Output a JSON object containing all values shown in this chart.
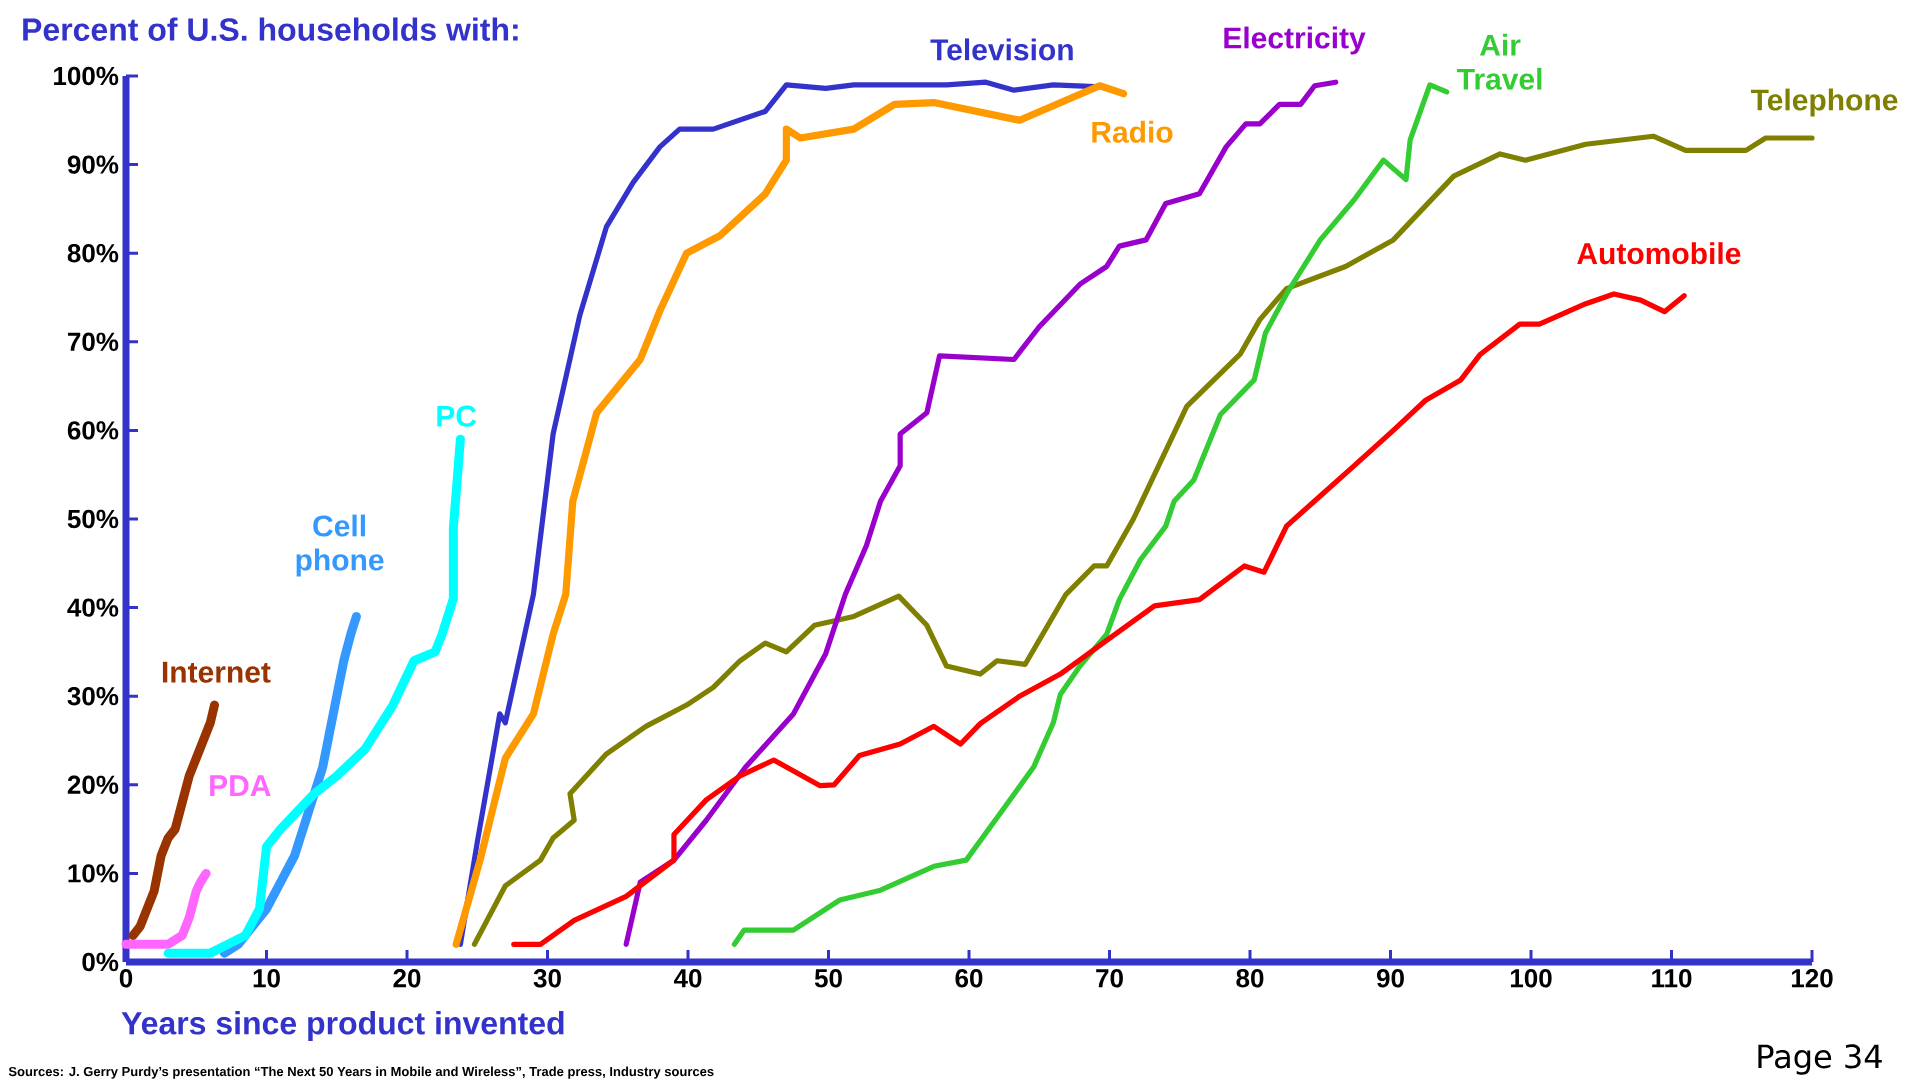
{
  "chart_data": {
    "type": "line",
    "title": "Percent of U.S. households with:",
    "xlabel": "Years since product invented",
    "xlim": [
      0,
      120
    ],
    "xticks": [
      0,
      10,
      20,
      30,
      40,
      50,
      60,
      70,
      80,
      90,
      100,
      110,
      120
    ],
    "ylim": [
      0,
      100
    ],
    "yticks": [
      {
        "value": 0,
        "label": "0%"
      },
      {
        "value": 10,
        "label": "10%"
      },
      {
        "value": 20,
        "label": "20%"
      },
      {
        "value": 30,
        "label": "30%"
      },
      {
        "value": 40,
        "label": "40%"
      },
      {
        "value": 50,
        "label": "50%"
      },
      {
        "value": 60,
        "label": "60%"
      },
      {
        "value": 70,
        "label": "70%"
      },
      {
        "value": 80,
        "label": "80%"
      },
      {
        "value": 90,
        "label": "90%"
      },
      {
        "value": 100,
        "label": "100%"
      }
    ],
    "grid": false,
    "legend": false,
    "line_style": "solid",
    "marker": "none",
    "annotations": [
      "Sources:  J. Gerry Purdy’s presentation “The Next 50 Years in Mobile and Wireless”, Trade press, Industry sources",
      "Page 34"
    ],
    "series": [
      {
        "name": "Internet",
        "color": "#993300",
        "x": [
          0.5,
          1,
          1.5,
          2,
          2.5,
          3,
          3.5,
          4,
          4.5,
          5,
          5.5,
          6,
          6.3
        ],
        "values": [
          3,
          4,
          6,
          8,
          12,
          14,
          15,
          18,
          21,
          23,
          25,
          27,
          29
        ]
      },
      {
        "name": "PDA",
        "color": "#ff66ff",
        "x": [
          0,
          1,
          2,
          3,
          4,
          4.5,
          5,
          5.3,
          5.7
        ],
        "values": [
          2,
          2,
          2,
          2,
          3,
          5,
          8,
          9,
          10
        ]
      },
      {
        "name": "Cell phone",
        "color": "#3399ff",
        "x": [
          7,
          8,
          9,
          10,
          11,
          12,
          13,
          14,
          14.5,
          15,
          15.5,
          16,
          16.4
        ],
        "values": [
          1,
          2,
          4,
          6,
          9,
          12,
          17,
          22,
          26,
          30,
          34,
          37,
          39
        ]
      },
      {
        "name": "PC",
        "color": "#00ffff",
        "x": [
          3,
          6,
          8.5,
          9.5,
          10,
          11,
          13.4,
          15,
          17,
          19,
          20.5,
          22,
          22.5,
          23.3,
          23.3,
          23.8
        ],
        "values": [
          1,
          1,
          3,
          6,
          13,
          15,
          19,
          21,
          24,
          29,
          34,
          35,
          37,
          41,
          49,
          59
        ]
      },
      {
        "name": "Television",
        "color": "#3333cc",
        "x": [
          23.8,
          25,
          26.6,
          27,
          29,
          30.4,
          32.3,
          34.2,
          36.1,
          38,
          39.4,
          41.8,
          45.5,
          47,
          49.8,
          51.8,
          58.4,
          61.2,
          63.2,
          66,
          69
        ],
        "values": [
          2,
          13.5,
          28,
          27,
          41.5,
          59.6,
          73,
          83,
          88,
          92,
          94,
          94,
          96,
          99,
          98.6,
          99,
          99,
          99.3,
          98.4,
          99,
          98.8
        ]
      },
      {
        "name": "Radio",
        "color": "#ff9900",
        "x": [
          23.5,
          25.2,
          27,
          29,
          30.4,
          31.3,
          31.8,
          33.5,
          36.6,
          38,
          39.9,
          42.3,
          45.5,
          47,
          47,
          48,
          51.8,
          54.7,
          57.5,
          63.6,
          69.3,
          71
        ],
        "values": [
          2,
          11.5,
          23,
          28,
          37,
          41.5,
          52,
          62,
          68,
          73.5,
          80,
          82,
          86.7,
          90.5,
          94,
          93,
          94,
          96.8,
          97,
          95,
          98.9,
          98
        ]
      },
      {
        "name": "Telephone",
        "color": "#808000",
        "x": [
          24.8,
          27,
          29.5,
          30.4,
          31.9,
          31.6,
          34.2,
          37,
          39.9,
          41.8,
          43.7,
          45.5,
          47,
          49,
          51.8,
          55,
          57,
          58.4,
          60.8,
          62,
          64,
          66.9,
          68.9,
          69.8,
          71.7,
          75.5,
          79.3,
          80.7,
          82.6,
          86.8,
          90.2,
          94.5,
          97.8,
          99.6,
          103.9,
          108.7,
          111,
          115.3,
          116.7,
          120
        ],
        "values": [
          2,
          8.6,
          11.5,
          14,
          16,
          19,
          23.5,
          26.6,
          29,
          31,
          34,
          36,
          35,
          38,
          39,
          41.3,
          38,
          33.4,
          32.5,
          34,
          33.6,
          41.5,
          44.7,
          44.7,
          50,
          62.7,
          68.6,
          72.5,
          76,
          78.5,
          81.5,
          88.7,
          91.2,
          90.5,
          92.3,
          93.2,
          91.6,
          91.6,
          93,
          93
        ]
      },
      {
        "name": "Electricity",
        "color": "#9900cc",
        "x": [
          35.6,
          36.6,
          39,
          41.3,
          44.1,
          47.5,
          49.8,
          51.2,
          52.7,
          53.7,
          55.1,
          55.1,
          57,
          57.9,
          63.2,
          65,
          67.9,
          69.8,
          70.7,
          72.6,
          74,
          76.4,
          78.3,
          79.7,
          80.7,
          82.1,
          83.6,
          84.6,
          86.1
        ],
        "values": [
          2,
          9,
          11.5,
          16,
          22,
          28,
          34.8,
          41.5,
          47,
          52,
          56,
          59.6,
          62,
          68.4,
          68,
          71.7,
          76.5,
          78.5,
          80.8,
          81.5,
          85.6,
          86.7,
          92,
          94.6,
          94.6,
          96.8,
          96.8,
          98.9,
          99.3
        ]
      },
      {
        "name": "Air Travel",
        "color": "#33cc33",
        "x": [
          43.3,
          44,
          47.5,
          50.8,
          53.7,
          57.5,
          59.8,
          62.6,
          64.6,
          66,
          66.5,
          67.9,
          69.8,
          70.7,
          72.2,
          74,
          74.6,
          76,
          77.9,
          80.3,
          81.1,
          82.6,
          85,
          87.4,
          89.5,
          91.1,
          91.4,
          92.8,
          94
        ],
        "values": [
          2,
          3.6,
          3.6,
          7,
          8.1,
          10.8,
          11.5,
          17.6,
          22,
          27,
          30.2,
          33.4,
          37,
          40.9,
          45.4,
          49.2,
          52,
          54.4,
          61.8,
          65.7,
          71,
          75.4,
          81.5,
          86,
          90.5,
          88.3,
          92.8,
          99,
          98.2
        ]
      },
      {
        "name": "Automobile",
        "color": "#ff0000",
        "x": [
          27.6,
          29.5,
          31.9,
          35.6,
          39,
          39,
          41.3,
          43.7,
          46.1,
          49.4,
          50.4,
          52.2,
          55.1,
          57.5,
          59.4,
          60.8,
          63.6,
          66.5,
          69.8,
          73.2,
          76.4,
          79.6,
          81,
          82.6,
          85,
          87.4,
          90.2,
          92.5,
          95,
          96.4,
          99.2,
          100.6,
          103.9,
          105.9,
          107.8,
          109.5,
          110.9
        ],
        "values": [
          2,
          2,
          4.7,
          7.4,
          11.5,
          14.4,
          18.3,
          21,
          22.8,
          19.9,
          20,
          23.3,
          24.6,
          26.6,
          24.6,
          26.9,
          30,
          32.5,
          36.3,
          40.2,
          40.9,
          44.7,
          44,
          49.2,
          52.6,
          56,
          60,
          63.4,
          65.7,
          68.6,
          72,
          72,
          74.3,
          75.4,
          74.7,
          73.4,
          75.2
        ]
      }
    ]
  }
}
